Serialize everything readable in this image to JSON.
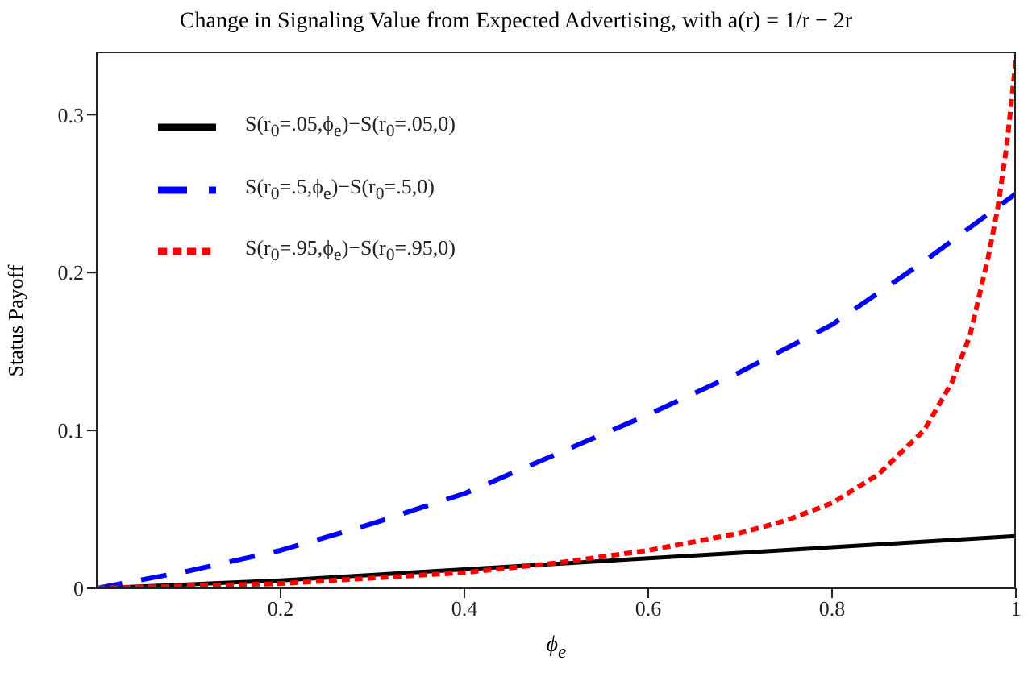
{
  "chart_data": {
    "type": "line",
    "title": "Change in Signaling Value from Expected Advertising, with a(r) = 1/r − 2r",
    "xlabel": "ϕ$_{e}$",
    "ylabel": "Status Payoff",
    "xlim": [
      0,
      1
    ],
    "xticks": [
      0.2,
      0.4,
      0.6,
      0.8,
      1
    ],
    "ylim": [
      0,
      0.34
    ],
    "yticks": [
      0,
      0.1,
      0.2,
      0.3
    ],
    "grid": false,
    "legend": "top left",
    "marker": "none",
    "series": [
      {
        "name": "S(r$_{0}$=.05,ϕ$_{e}$)−S(r$_{0}$=.05,0)",
        "color": "#000000",
        "line_style": "solid",
        "x": [
          0,
          0.2,
          0.4,
          0.6,
          0.8,
          1
        ],
        "values": [
          0,
          0.005,
          0.012,
          0.019,
          0.026,
          0.033
        ]
      },
      {
        "name": "S(r$_{0}$=.5,ϕ$_{e}$)−S(r$_{0}$=.5,0)",
        "color": "#0000ff",
        "line_style": "dashed",
        "x": [
          0,
          0.1,
          0.2,
          0.3,
          0.4,
          0.5,
          0.6,
          0.7,
          0.8,
          0.9,
          1
        ],
        "values": [
          0,
          0.011,
          0.024,
          0.041,
          0.06,
          0.085,
          0.11,
          0.137,
          0.167,
          0.207,
          0.25
        ]
      },
      {
        "name": "S(r$_{0}$=.95,ϕ$_{e}$)−S(r$_{0}$=.95,0)",
        "color": "#ff0000",
        "line_style": "dotted",
        "x": [
          0,
          0.2,
          0.4,
          0.5,
          0.6,
          0.7,
          0.75,
          0.8,
          0.85,
          0.9,
          0.93,
          0.95,
          0.97,
          0.98,
          0.99,
          1
        ],
        "values": [
          0,
          0.003,
          0.01,
          0.016,
          0.024,
          0.035,
          0.043,
          0.054,
          0.072,
          0.1,
          0.13,
          0.16,
          0.21,
          0.24,
          0.28,
          0.335
        ]
      }
    ]
  }
}
